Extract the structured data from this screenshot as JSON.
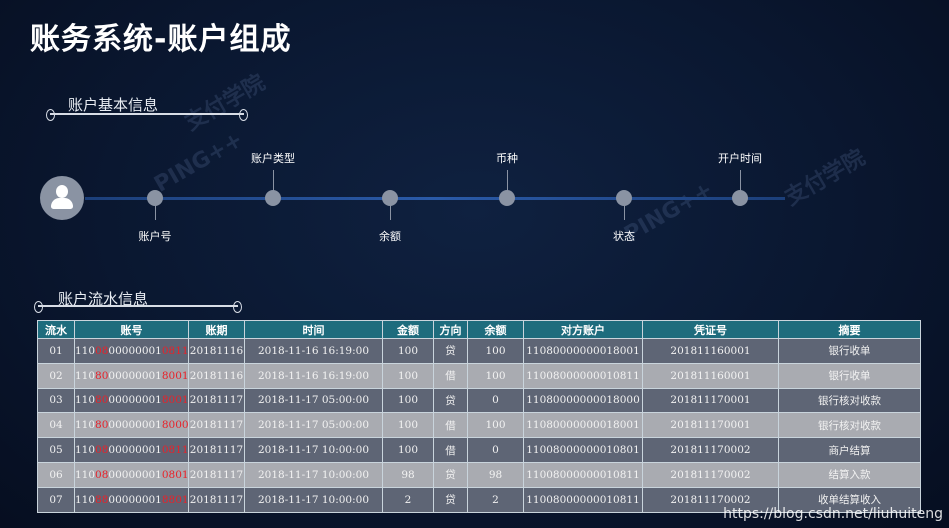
{
  "title": "账务系统-账户组成",
  "watermarks": {
    "brand": "PING++",
    "logo": "支付学院"
  },
  "basic_section": {
    "title": "账户基本信息",
    "timeline": [
      {
        "label": "账户号",
        "position": "below"
      },
      {
        "label": "账户类型",
        "position": "above"
      },
      {
        "label": "余额",
        "position": "below"
      },
      {
        "label": "币种",
        "position": "above"
      },
      {
        "label": "状态",
        "position": "below"
      },
      {
        "label": "开户时间",
        "position": "above"
      }
    ]
  },
  "flow_section": {
    "title": "账户流水信息",
    "columns": [
      "流水",
      "账号",
      "账期",
      "时间",
      "金额",
      "方向",
      "余额",
      "对方账户",
      "凭证号",
      "摘要"
    ],
    "rows": [
      {
        "no": "01",
        "acct": [
          "110",
          "08",
          "00000001",
          "0811"
        ],
        "period": "20181116",
        "time": "2018-11-16 16:19:00",
        "amount": "100",
        "dir": "贷",
        "balance": "100",
        "counter": "11080000000018001",
        "voucher": "201811160001",
        "memo": "银行收单"
      },
      {
        "no": "02",
        "acct": [
          "110",
          "80",
          "00000001",
          "8001"
        ],
        "period": "20181116",
        "time": "2018-11-16 16:19:00",
        "amount": "100",
        "dir": "借",
        "balance": "100",
        "counter": "11008000000010811",
        "voucher": "201811160001",
        "memo": "银行收单"
      },
      {
        "no": "03",
        "acct": [
          "110",
          "80",
          "00000001",
          "8001"
        ],
        "period": "20181117",
        "time": "2018-11-17 05:00:00",
        "amount": "100",
        "dir": "贷",
        "balance": "0",
        "counter": "11080000000018000",
        "voucher": "201811170001",
        "memo": "银行核对收款"
      },
      {
        "no": "04",
        "acct": [
          "110",
          "80",
          "00000001",
          "8000"
        ],
        "period": "20181117",
        "time": "2018-11-17 05:00:00",
        "amount": "100",
        "dir": "借",
        "balance": "100",
        "counter": "11080000000018001",
        "voucher": "201811170001",
        "memo": "银行核对收款"
      },
      {
        "no": "05",
        "acct": [
          "110",
          "08",
          "00000001",
          "0811"
        ],
        "period": "20181117",
        "time": "2018-11-17 10:00:00",
        "amount": "100",
        "dir": "借",
        "balance": "0",
        "counter": "11008000000010801",
        "voucher": "201811170002",
        "memo": "商户结算"
      },
      {
        "no": "06",
        "acct": [
          "110",
          "08",
          "00000001",
          "0801"
        ],
        "period": "20181117",
        "time": "2018-11-17 10:00:00",
        "amount": "98",
        "dir": "贷",
        "balance": "98",
        "counter": "11008000000010811",
        "voucher": "201811170002",
        "memo": "结算入款"
      },
      {
        "no": "07",
        "acct": [
          "110",
          "88",
          "00000001",
          "8801"
        ],
        "period": "20181117",
        "time": "2018-11-17 10:00:00",
        "amount": "2",
        "dir": "贷",
        "balance": "2",
        "counter": "11008000000010811",
        "voucher": "201811170002",
        "memo": "收单结算收入"
      }
    ]
  },
  "footer_watermark": "https://blog.csdn.net/liuhuiteng",
  "colors": {
    "header": "#1e6c7d",
    "row_dark": "#5e6575",
    "row_light": "#a9abb1",
    "highlight": "#e8222a"
  }
}
